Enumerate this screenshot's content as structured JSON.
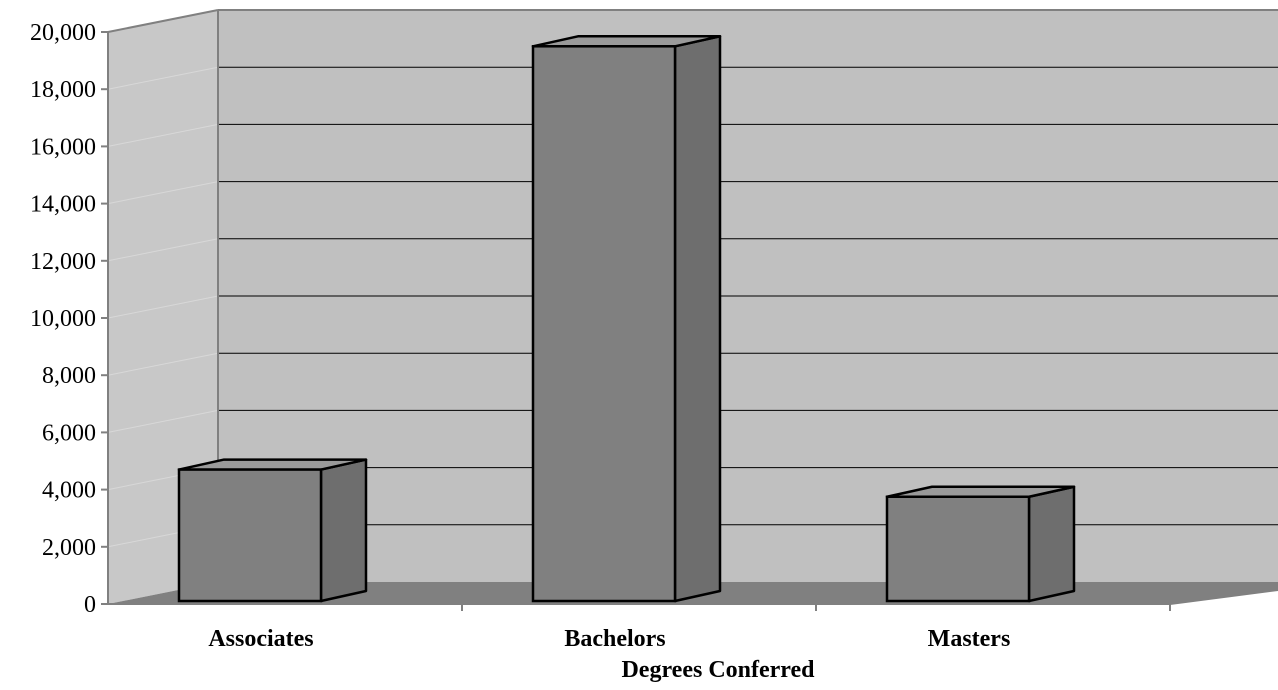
{
  "chart_data": {
    "type": "bar",
    "style": "3d-column",
    "categories": [
      "Associates",
      "Bachelors",
      "Masters"
    ],
    "values": [
      4700,
      19500,
      3750
    ],
    "xlabel": "Degrees Conferred",
    "ylabel": "",
    "title": "",
    "ylim": [
      0,
      20000
    ],
    "ytick_step": 2000,
    "ytick_labels": [
      "0",
      "2,000",
      "4,000",
      "6,000",
      "8,000",
      "10,000",
      "12,000",
      "14,000",
      "16,000",
      "18,000",
      "20,000"
    ],
    "grid": true,
    "legend": "none"
  },
  "colors": {
    "wall": "#c0c0c0",
    "side_wall": "#c8c8c8",
    "floor": "#808080",
    "bar_front": "#808080",
    "bar_top": "#9a9a9a",
    "bar_side": "#6e6e6e",
    "gridline": "#000000",
    "axis": "#808080"
  }
}
